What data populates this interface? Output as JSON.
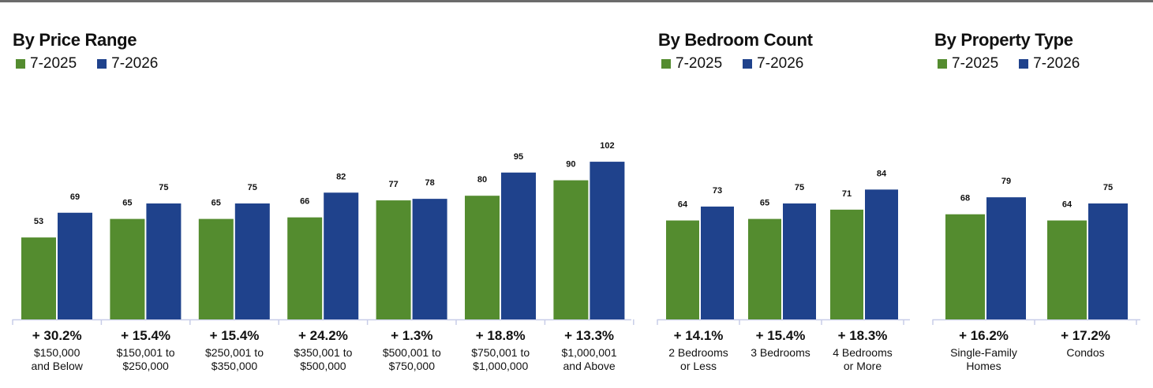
{
  "colors": {
    "series_2025": "#548c2f",
    "series_2026": "#1f428c",
    "axis": "#c8cde8"
  },
  "chart_data": [
    {
      "type": "bar",
      "title": "By Price Range",
      "series": [
        {
          "name": "7-2025",
          "values": [
            53,
            65,
            65,
            66,
            77,
            80,
            90
          ]
        },
        {
          "name": "7-2026",
          "values": [
            69,
            75,
            75,
            82,
            78,
            95,
            102
          ]
        }
      ],
      "categories": [
        [
          "$150,000",
          "and Below"
        ],
        [
          "$150,001 to",
          "$250,000"
        ],
        [
          "$250,001 to",
          "$350,000"
        ],
        [
          "$350,001 to",
          "$500,000"
        ],
        [
          "$500,001 to",
          "$750,000"
        ],
        [
          "$750,001 to",
          "$1,000,000"
        ],
        [
          "$1,000,001",
          "and Above"
        ]
      ],
      "changes": [
        "+ 30.2%",
        "+ 15.4%",
        "+ 15.4%",
        "+ 24.2%",
        "+ 1.3%",
        "+ 18.8%",
        "+ 13.3%"
      ],
      "legend": "top-left",
      "grid": false
    },
    {
      "type": "bar",
      "title": "By Bedroom Count",
      "series": [
        {
          "name": "7-2025",
          "values": [
            64,
            65,
            71
          ]
        },
        {
          "name": "7-2026",
          "values": [
            73,
            75,
            84
          ]
        }
      ],
      "categories": [
        [
          "2 Bedrooms",
          "or Less"
        ],
        [
          "3 Bedrooms"
        ],
        [
          "4 Bedrooms",
          "or More"
        ]
      ],
      "changes": [
        "+ 14.1%",
        "+ 15.4%",
        "+ 18.3%"
      ],
      "legend": "top-left",
      "grid": false
    },
    {
      "type": "bar",
      "title": "By Property Type",
      "series": [
        {
          "name": "7-2025",
          "values": [
            68,
            64
          ]
        },
        {
          "name": "7-2026",
          "values": [
            79,
            75
          ]
        }
      ],
      "categories": [
        [
          "Single-Family",
          "Homes"
        ],
        [
          "Condos"
        ]
      ],
      "changes": [
        "+ 16.2%",
        "+ 17.2%"
      ],
      "legend": "top-left",
      "grid": false
    }
  ]
}
